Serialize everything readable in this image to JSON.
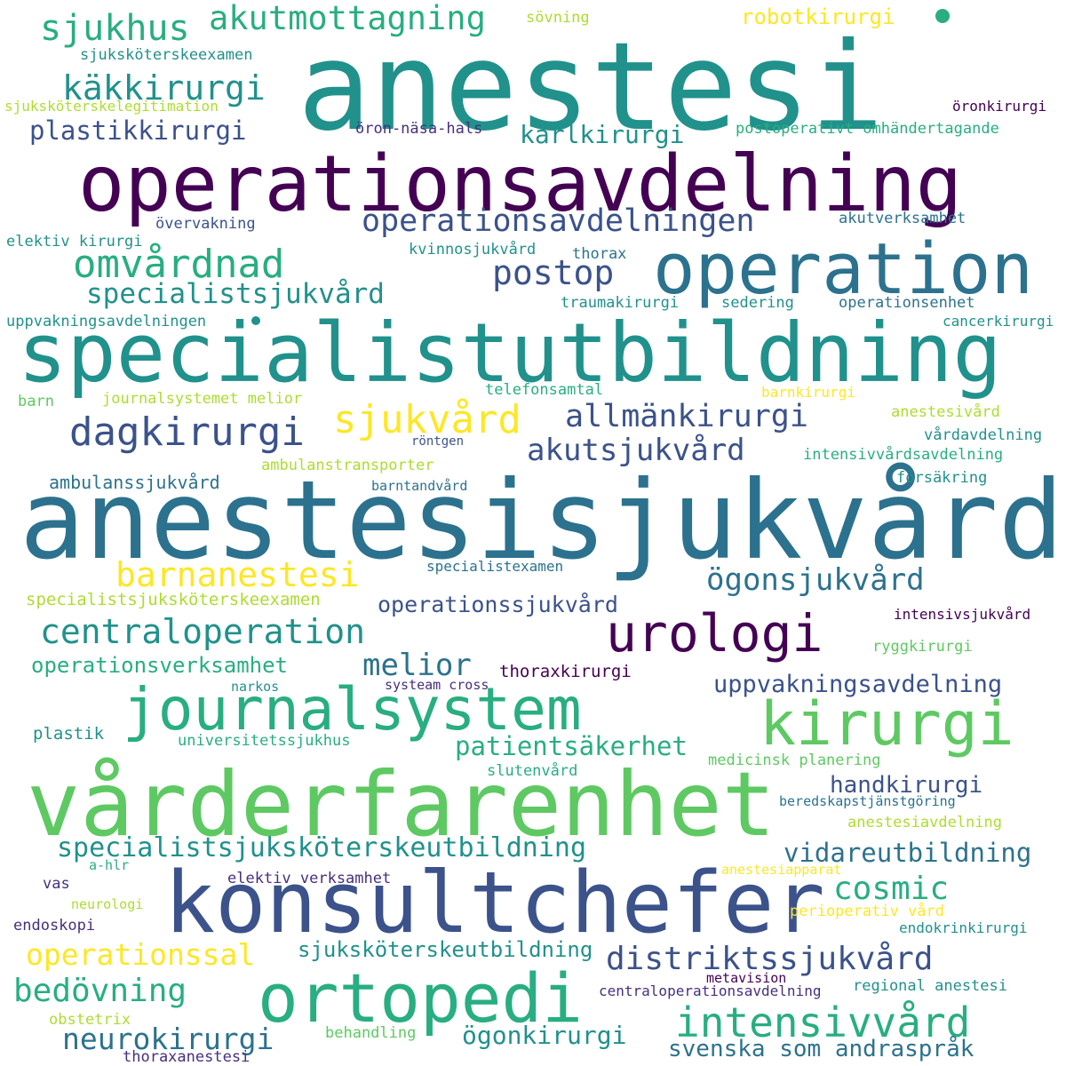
{
  "colors": {
    "c1": "#440154",
    "c2": "#472f7d",
    "c3": "#3b528b",
    "c4": "#2c728e",
    "c5": "#21918c",
    "c6": "#28ae80",
    "c7": "#5ec962",
    "c8": "#addc30",
    "c9": "#fde725"
  },
  "words": [
    "anestesi",
    "operationsavdelning",
    "operation",
    "specialistutbildning",
    "anestesisjukvård",
    "vårderfarenhet",
    "konsultchefer",
    "ortopedi",
    "journalsystem",
    "kirurgi",
    "urologi",
    "sjukhus",
    "akutmottagning",
    "käkkirurgi",
    "plastikkirurgi",
    "kärlkirurgi",
    "robotkirurgi",
    "sövning",
    "sjuksköterskeexamen",
    "sjuksköterskelegitimation",
    "öronkirurgi",
    "öron-näsa-hals",
    "postoperativt omhändertagande",
    "operationsavdelningen",
    "omvårdnad",
    "postop",
    "specialistsjukvård",
    "övervakning",
    "akutverksamhet",
    "elektiv kirurgi",
    "kvinnosjukvård",
    "thorax",
    "traumakirurgi",
    "sedering",
    "operationsenhet",
    "uppvakningsavdelningen",
    "cancerkirurgi",
    "barn",
    "journalsystemet melior",
    "telefonsamtal",
    "barnkirurgi",
    "sjukvård",
    "dagkirurgi",
    "allmänkirurgi",
    "anestesivård",
    "röntgen",
    "akutsjukvård",
    "vårdavdelning",
    "ambulanstransporter",
    "intensivvårdsavdelning",
    "ambulanssjukvård",
    "barntandvård",
    "försäkring",
    "specialistexamen",
    "barnanestesi",
    "ögonsjukvård",
    "specialistsjuksköterskeexamen",
    "operationssjukvård",
    "intensivsjukvård",
    "centraloperation",
    "operationsverksamhet",
    "melior",
    "ryggkirurgi",
    "thoraxkirurgi",
    "narkos",
    "systeam cross",
    "uppvakningsavdelning",
    "plastik",
    "universitetssjukhus",
    "patientsäkerhet",
    "slutenvård",
    "medicinsk planering",
    "handkirurgi",
    "beredskapstjänstgöring",
    "anestesiavdelning",
    "specialistsjuksköterskeutbildning",
    "vidareutbildning",
    "a-hlr",
    "anestesiapparat",
    "elektiv verksamhet",
    "cosmic",
    "vas",
    "neurologi",
    "perioperativ vård",
    "endoskopi",
    "endokrinkirurgi",
    "operationssal",
    "sjuksköterskeutbildning",
    "distriktssjukvård",
    "bedövning",
    "metavision",
    "centraloperationsavdelning",
    "regional anestesi",
    "intensivvård",
    "obstetrix",
    "neurokirurgi",
    "behandling",
    "ögonkirurgi",
    "svenska som andraspråk",
    "thoraxanestesi"
  ]
}
